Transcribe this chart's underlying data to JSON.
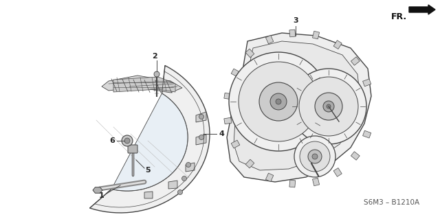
{
  "bg_color": "#ffffff",
  "line_color": "#444444",
  "fill_light": "#f5f5f5",
  "fill_mid": "#e0e0e0",
  "fill_dark": "#c8c8c8",
  "fr_text": "FR.",
  "code_text": "S6M3 – B1210A",
  "label_color": "#222222"
}
